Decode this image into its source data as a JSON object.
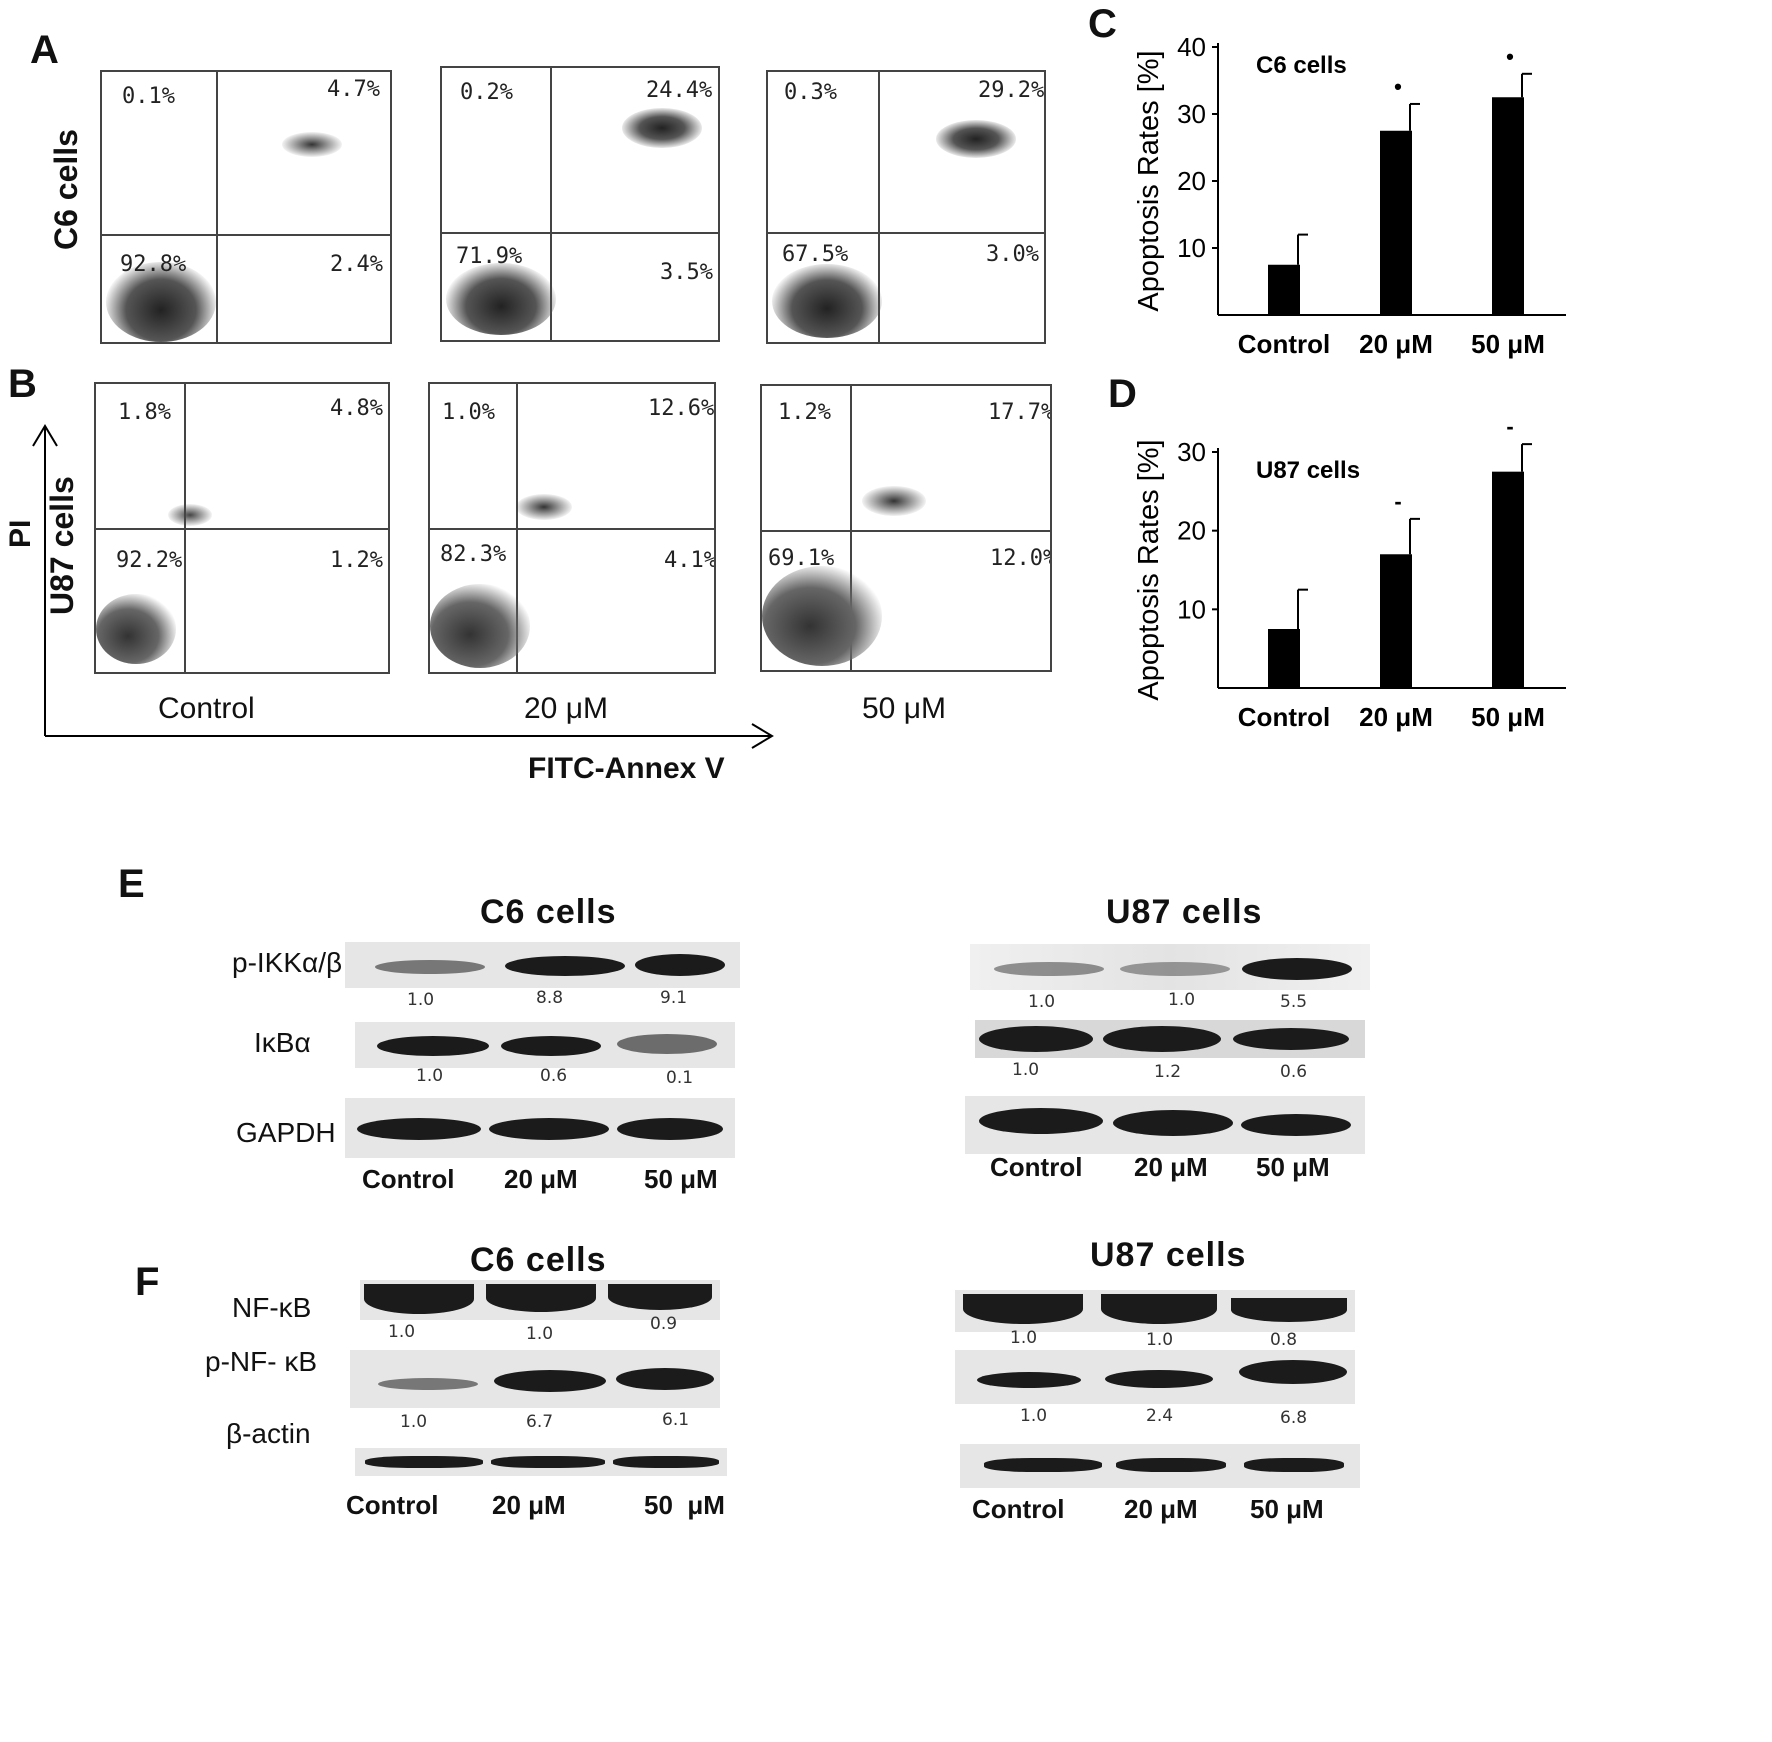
{
  "panels": {
    "A": "A",
    "B": "B",
    "C": "C",
    "D": "D",
    "E": "E",
    "F": "F"
  },
  "flow": {
    "row_labels": {
      "c6": "C6 cells",
      "u87": "U87 cells"
    },
    "y_axis": "PI",
    "x_axis": "FITC-Annex V",
    "conditions": [
      "Control",
      "20 μM",
      "50 μM"
    ],
    "c6": [
      {
        "ul": "0.1%",
        "ur": "4.7%",
        "ll": "92.8%",
        "lr": "2.4%"
      },
      {
        "ul": "0.2%",
        "ur": "24.4%",
        "ll": "71.9%",
        "lr": "3.5%"
      },
      {
        "ul": "0.3%",
        "ur": "29.2%",
        "ll": "67.5%",
        "lr": "3.0%"
      }
    ],
    "u87": [
      {
        "ul": "1.8%",
        "ur": "4.8%",
        "ll": "92.2%",
        "lr": "1.2%"
      },
      {
        "ul": "1.0%",
        "ur": "12.6%",
        "ll": "82.3%",
        "lr": "4.1%"
      },
      {
        "ul": "1.2%",
        "ur": "17.7%",
        "ll": "69.1%",
        "lr": "12.0%"
      }
    ]
  },
  "chart_data": [
    {
      "type": "bar",
      "title": "C6 cells",
      "ylabel": "Apoptosis Rates [%]",
      "xlabel": "",
      "categories": [
        "Control",
        "20 μM",
        "50 μM"
      ],
      "values": [
        7.5,
        27.5,
        32.5
      ],
      "errors": [
        4.5,
        4,
        3.5
      ],
      "significance": [
        "",
        "•",
        "•"
      ],
      "ylim": [
        0,
        40
      ],
      "yticks": [
        10,
        20,
        30,
        40
      ]
    },
    {
      "type": "bar",
      "title": "U87 cells",
      "ylabel": "Apoptosis Rates [%]",
      "xlabel": "",
      "categories": [
        "Control",
        "20 μM",
        "50 μM"
      ],
      "values": [
        7.5,
        17,
        27.5
      ],
      "errors": [
        5,
        4.5,
        3.5
      ],
      "significance": [
        "",
        "-",
        "-"
      ],
      "ylim": [
        0,
        30
      ],
      "yticks": [
        10,
        20,
        30
      ]
    }
  ],
  "blots": {
    "E": {
      "c6_title": "C6 cells",
      "u87_title": "U87 cells",
      "labels": [
        "p-IKKα/β",
        "IκBα",
        "GAPDH"
      ],
      "c6_values": [
        [
          "1.0",
          "8.8",
          "9.1"
        ],
        [
          "1.0",
          "0.6",
          "0.1"
        ]
      ],
      "u87_values": [
        [
          "1.0",
          "1.0",
          "5.5"
        ],
        [
          "1.0",
          "1.2",
          "0.6"
        ]
      ],
      "conditions": [
        "Control",
        "20 μM",
        "50 μM"
      ]
    },
    "F": {
      "c6_title": "C6 cells",
      "u87_title": "U87 cells",
      "labels": [
        "NF-κB",
        "p-NF- κB",
        "β-actin"
      ],
      "c6_values": [
        [
          "1.0",
          "1.0",
          "0.9"
        ],
        [
          "1.0",
          "6.7",
          "6.1"
        ]
      ],
      "u87_values": [
        [
          "1.0",
          "1.0",
          "0.8"
        ],
        [
          "1.0",
          "2.4",
          "6.8"
        ]
      ],
      "c6_conditions": [
        "Control",
        "20 μM",
        "50  μM"
      ],
      "u87_conditions": [
        "Control",
        "20 μM",
        "50 μM"
      ]
    }
  }
}
